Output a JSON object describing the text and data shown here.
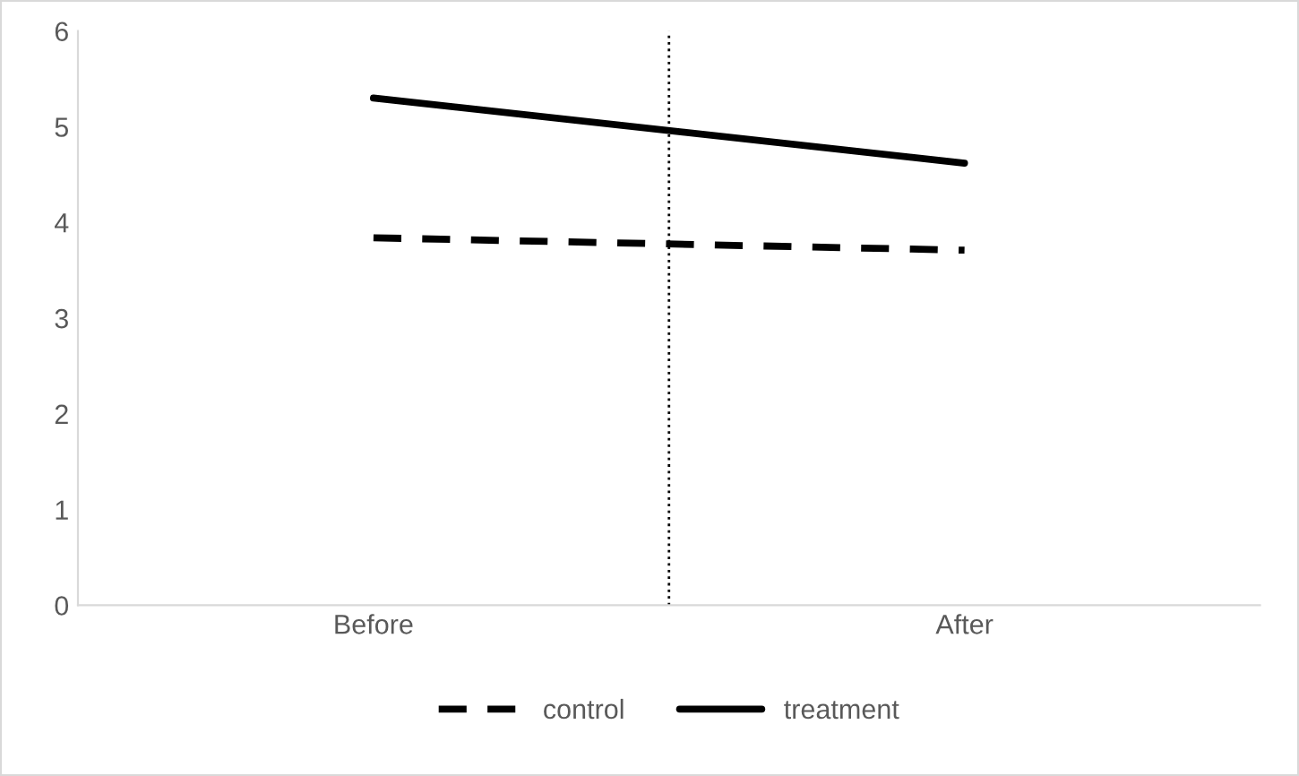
{
  "chart_data": {
    "type": "line",
    "categories": [
      "Before",
      "After"
    ],
    "series": [
      {
        "name": "control",
        "color": "#000000",
        "values": [
          3.84,
          3.71
        ],
        "line_style": "dashed"
      },
      {
        "name": "treatment",
        "color": "#000000",
        "values": [
          5.3,
          4.62
        ],
        "line_style": "solid"
      }
    ],
    "ylim": [
      0,
      6
    ],
    "yticks": [
      0,
      1,
      2,
      3,
      4,
      5,
      6
    ],
    "grid": false,
    "legend": "bottom",
    "marker": "none"
  }
}
